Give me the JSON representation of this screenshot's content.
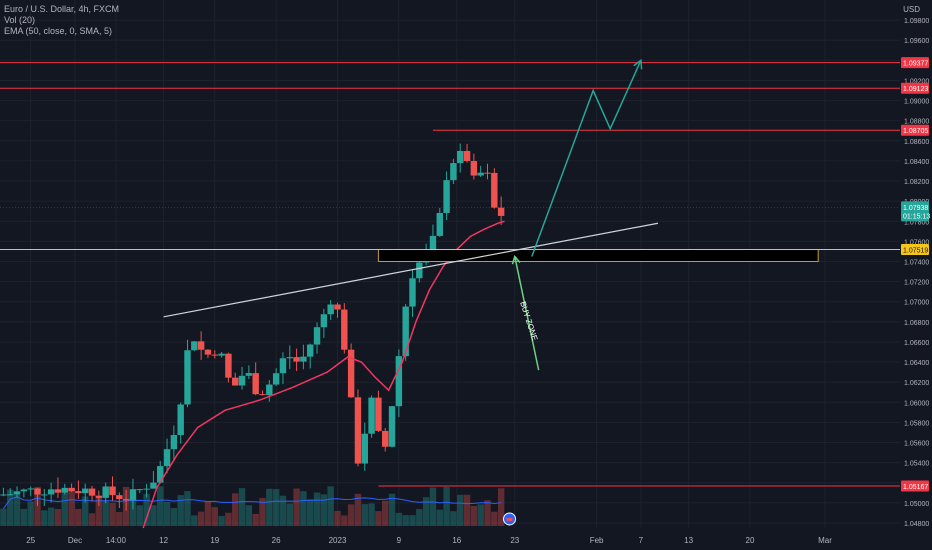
{
  "legend": {
    "symbol": "Euro / U.S. Dollar, 4h, FXCM",
    "volume": "Vol (20)",
    "ema": "EMA (50, close, 0, SMA, 5)"
  },
  "currency": "USD",
  "colors": {
    "background": "#131722",
    "up": "#26a69a",
    "down": "#ef5350",
    "ema": "#f23661",
    "volume_ma": "#2962ff",
    "level": "#f23645",
    "zone": "#f5c518",
    "axis_text": "#b2b5be",
    "grid": "#1e222d",
    "target_arrow": "#26a69a",
    "buy_arrow": "#6bd37b",
    "trendline": "#d1d4dc"
  },
  "chart_data": {
    "type": "candlestick",
    "title": "Euro / U.S. Dollar, 4h, FXCM",
    "ylim": [
      1.0475,
      1.1
    ],
    "y_ticks": [
      1.048,
      1.05,
      1.052,
      1.054,
      1.056,
      1.058,
      1.06,
      1.062,
      1.064,
      1.066,
      1.068,
      1.07,
      1.072,
      1.074,
      1.076,
      1.078,
      1.08,
      1.082,
      1.084,
      1.086,
      1.088,
      1.09,
      1.092,
      1.094,
      1.096,
      1.098
    ],
    "y_tick_labels": [
      "1.04800",
      "1.05000",
      "1.05200",
      "1.05400",
      "1.05600",
      "1.05800",
      "1.06000",
      "1.06200",
      "1.06400",
      "1.06600",
      "1.06800",
      "1.07000",
      "1.07200",
      "1.07400",
      "1.07600",
      "1.07800",
      "1.08000",
      "1.08200",
      "1.08400",
      "1.08600",
      "1.08800",
      "1.09000",
      "1.09200",
      "1.09400",
      "1.09600",
      "1.09800"
    ],
    "x_range": [
      0,
      132
    ],
    "x_ticks": [
      {
        "x": 4.5,
        "label": "25"
      },
      {
        "x": 11.0,
        "label": "Dec"
      },
      {
        "x": 17.0,
        "label": "14:00"
      },
      {
        "x": 24.0,
        "label": "12"
      },
      {
        "x": 31.5,
        "label": "19"
      },
      {
        "x": 40.5,
        "label": "26"
      },
      {
        "x": 49.5,
        "label": "2023"
      },
      {
        "x": 58.5,
        "label": "9"
      },
      {
        "x": 67.0,
        "label": "16"
      },
      {
        "x": 75.5,
        "label": "23"
      },
      {
        "x": 87.5,
        "label": "Feb"
      },
      {
        "x": 94.0,
        "label": "7"
      },
      {
        "x": 101.0,
        "label": "13"
      },
      {
        "x": 110.0,
        "label": "20"
      },
      {
        "x": 121.0,
        "label": "Mar"
      }
    ],
    "keypoints": [
      [
        0,
        1.0508
      ],
      [
        8,
        1.0515
      ],
      [
        14,
        1.0512
      ],
      [
        19,
        1.0505
      ],
      [
        23,
        1.0526
      ],
      [
        26,
        1.0582
      ],
      [
        28,
        1.0672
      ],
      [
        30,
        1.0645
      ],
      [
        32,
        1.0655
      ],
      [
        34,
        1.0612
      ],
      [
        36,
        1.0632
      ],
      [
        38,
        1.0608
      ],
      [
        40,
        1.0622
      ],
      [
        42,
        1.0648
      ],
      [
        44,
        1.0638
      ],
      [
        46,
        1.0665
      ],
      [
        48,
        1.0695
      ],
      [
        49,
        1.0712
      ],
      [
        50,
        1.0668
      ],
      [
        51,
        1.0645
      ],
      [
        52,
        1.0552
      ],
      [
        53,
        1.0535
      ],
      [
        54,
        1.0608
      ],
      [
        55,
        1.0592
      ],
      [
        56,
        1.054
      ],
      [
        57,
        1.0572
      ],
      [
        58,
        1.0625
      ],
      [
        59,
        1.0668
      ],
      [
        60,
        1.0725
      ],
      [
        61,
        1.0732
      ],
      [
        62,
        1.0745
      ],
      [
        63,
        1.0752
      ],
      [
        64,
        1.0768
      ],
      [
        65,
        1.08
      ],
      [
        66,
        1.0852
      ],
      [
        67,
        1.083
      ],
      [
        68,
        1.0858
      ],
      [
        69,
        1.0828
      ],
      [
        70,
        1.081
      ],
      [
        71,
        1.0845
      ],
      [
        72,
        1.0802
      ],
      [
        73,
        1.0782
      ],
      [
        74,
        1.0792
      ]
    ],
    "candle_count": 74,
    "last_price": 1.07938,
    "countdown": "01:15:13",
    "volume_note": "relative volume histogram with MA(20)",
    "ema_keypoints": [
      [
        21,
        1.0475
      ],
      [
        23,
        1.0515
      ],
      [
        26,
        1.0548
      ],
      [
        29,
        1.0575
      ],
      [
        33,
        1.0592
      ],
      [
        38,
        1.0602
      ],
      [
        43,
        1.0615
      ],
      [
        48,
        1.063
      ],
      [
        51,
        1.0645
      ],
      [
        53,
        1.064
      ],
      [
        55,
        1.0625
      ],
      [
        57,
        1.0612
      ],
      [
        59,
        1.064
      ],
      [
        61,
        1.068
      ],
      [
        63,
        1.0712
      ],
      [
        65,
        1.0735
      ],
      [
        67,
        1.0752
      ],
      [
        69,
        1.0765
      ],
      [
        71,
        1.0772
      ],
      [
        73,
        1.0778
      ],
      [
        74,
        1.078
      ]
    ],
    "horizontal_levels": [
      {
        "value": 1.09377,
        "label": "1.09377",
        "x_start": 0
      },
      {
        "value": 1.09123,
        "label": "1.09123",
        "x_start": 0
      },
      {
        "value": 1.08705,
        "label": "1.08705",
        "x_start": 63.5
      },
      {
        "value": 1.05167,
        "label": "1.05167",
        "x_start": 55.5
      }
    ],
    "zone": {
      "top": 1.07519,
      "bottom": 1.074,
      "x_start": 55.5,
      "x_end": 120,
      "label": "1.07519"
    },
    "trendline": {
      "x1": 24,
      "y1": 1.0685,
      "x2": 96.5,
      "y2": 1.0778
    },
    "projection_path": [
      [
        78,
        1.0745
      ],
      [
        87,
        1.091
      ],
      [
        89.5,
        1.0872
      ],
      [
        94,
        1.094
      ]
    ],
    "buy_arrow": {
      "from": [
        79,
        1.0632
      ],
      "to": [
        75.5,
        1.0745
      ]
    },
    "annotation": "BUY ZONE"
  }
}
